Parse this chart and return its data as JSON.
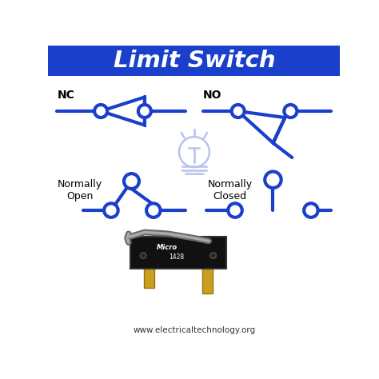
{
  "title": "Limit Switch",
  "title_bg_color": "#1a3fcb",
  "title_text_color": "#ffffff",
  "diagram_color": "#1a3fcb",
  "bg_color": "#ffffff",
  "label_nc": "NC",
  "label_no": "NO",
  "label_norm_open": "Normally\nOpen",
  "label_norm_closed": "Normally\nClosed",
  "website": "www.electricaltechnology.org",
  "lw": 3.0,
  "circle_r": 0.022,
  "bulb_color": "#b8c4e8",
  "switch_color": "#1a3fcb"
}
